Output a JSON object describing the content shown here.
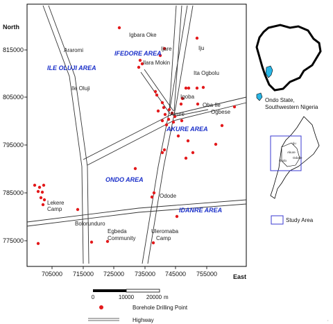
{
  "axes": {
    "north_label": "North",
    "east_label": "East",
    "northing_ticks": [
      "815000",
      "805000",
      "795000",
      "785000",
      "775000"
    ],
    "easting_ticks": [
      "705000",
      "715000",
      "725000",
      "735000",
      "745000",
      "755000"
    ]
  },
  "places": [
    {
      "id": "igbara-oke",
      "label": "Igbara Oke"
    },
    {
      "id": "araromi",
      "label": "Araromi"
    },
    {
      "id": "ijare",
      "label": "Ijare"
    },
    {
      "id": "iju",
      "label": "Iju"
    },
    {
      "id": "ilara-mokin",
      "label": "Ilara Mokin"
    },
    {
      "id": "ita-ogbolu",
      "label": "Ita Ogbolu"
    },
    {
      "id": "ile-oluji",
      "label": "Ile Oluji"
    },
    {
      "id": "igoba",
      "label": "Igoba"
    },
    {
      "id": "oba-ile",
      "label": "Oba Ile"
    },
    {
      "id": "akure",
      "label": "Akure"
    },
    {
      "id": "ogbese",
      "label": "Ogbese"
    },
    {
      "id": "odode",
      "label": "Odode"
    },
    {
      "id": "lekere-camp-1",
      "label": "Lekere"
    },
    {
      "id": "lekere-camp-2",
      "label": "Camp"
    },
    {
      "id": "bolorunduro",
      "label": "Bolorunduro"
    },
    {
      "id": "egbeda-1",
      "label": "Egbeda"
    },
    {
      "id": "egbeda-2",
      "label": "Community"
    },
    {
      "id": "uleromaba-1",
      "label": "Uleromaba"
    },
    {
      "id": "uleromaba-2",
      "label": "Camp"
    }
  ],
  "areas": [
    {
      "id": "ifedore",
      "label": "IFEDORE AREA"
    },
    {
      "id": "ile-oluji",
      "label": "ILE OLUJI AREA"
    },
    {
      "id": "akure",
      "label": "AKURE AREA"
    },
    {
      "id": "ondo",
      "label": "ONDO AREA"
    },
    {
      "id": "idanre",
      "label": "IDANRE AREA"
    }
  ],
  "inset": {
    "state_label_1": "Ondo State,",
    "state_label_2": "Southwestern Nigeria",
    "study_area_label": "Study Area",
    "map_labels": [
      "Iju",
      "Akure",
      "Ondo",
      "Odode"
    ],
    "colors": {
      "state_fill": "#29b6e6",
      "study_box": "#3a3ad0"
    }
  },
  "scale_bar": {
    "labels": [
      "0",
      "10000",
      "20000"
    ],
    "unit": "m"
  },
  "legend": {
    "borehole_label": "Borehole Drilling Point",
    "highway_label": "Highway",
    "borehole_color": "#e31a1c"
  }
}
